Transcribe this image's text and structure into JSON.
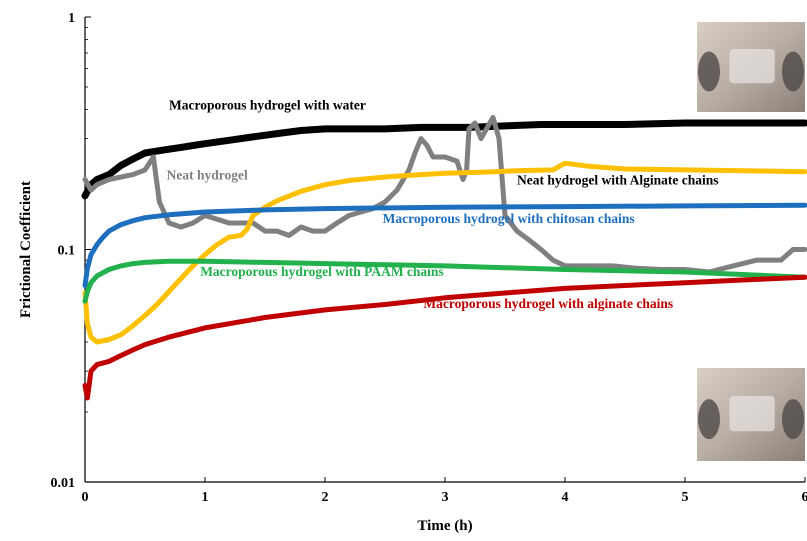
{
  "chart_data": {
    "type": "line",
    "title": "",
    "xlabel": "Time (h)",
    "ylabel": "Frictional Coefficient",
    "xlim": [
      0,
      6
    ],
    "ylim": [
      0.01,
      1
    ],
    "yscale": "log",
    "xticks": [
      "0",
      "1",
      "2",
      "3",
      "4",
      "5",
      "6"
    ],
    "yticks": [
      "0.01",
      "0.1",
      "1"
    ],
    "grid": false,
    "legend": "none (series labelled inline)",
    "series": [
      {
        "name": "Macroporous hydrogel with water",
        "color": "#000000",
        "x": [
          0,
          0.05,
          0.1,
          0.2,
          0.3,
          0.4,
          0.5,
          0.6,
          0.7,
          0.8,
          0.9,
          1.0,
          1.2,
          1.4,
          1.6,
          1.8,
          2.0,
          2.2,
          2.5,
          2.8,
          3.0,
          3.2,
          3.5,
          3.8,
          4.0,
          4.5,
          5.0,
          5.5,
          6.0
        ],
        "y": [
          0.17,
          0.19,
          0.2,
          0.21,
          0.23,
          0.245,
          0.26,
          0.265,
          0.27,
          0.275,
          0.28,
          0.285,
          0.295,
          0.305,
          0.315,
          0.325,
          0.33,
          0.33,
          0.33,
          0.335,
          0.335,
          0.335,
          0.34,
          0.345,
          0.345,
          0.345,
          0.35,
          0.35,
          0.35
        ]
      },
      {
        "name": "Neat hydrogel",
        "color": "#808080",
        "x": [
          0,
          0.05,
          0.1,
          0.2,
          0.3,
          0.4,
          0.5,
          0.57,
          0.62,
          0.7,
          0.8,
          0.9,
          1.0,
          1.1,
          1.2,
          1.3,
          1.4,
          1.5,
          1.6,
          1.7,
          1.8,
          1.9,
          2.0,
          2.1,
          2.2,
          2.3,
          2.4,
          2.5,
          2.6,
          2.7,
          2.75,
          2.8,
          2.85,
          2.9,
          3.0,
          3.1,
          3.15,
          3.18,
          3.2,
          3.25,
          3.3,
          3.4,
          3.45,
          3.5,
          3.6,
          3.7,
          3.8,
          3.9,
          4.0,
          4.2,
          4.4,
          4.6,
          4.8,
          5.0,
          5.2,
          5.4,
          5.6,
          5.8,
          5.9,
          6.0
        ],
        "y": [
          0.2,
          0.18,
          0.19,
          0.2,
          0.205,
          0.21,
          0.22,
          0.25,
          0.16,
          0.13,
          0.125,
          0.13,
          0.14,
          0.135,
          0.13,
          0.13,
          0.13,
          0.12,
          0.12,
          0.115,
          0.125,
          0.12,
          0.12,
          0.13,
          0.14,
          0.145,
          0.15,
          0.16,
          0.18,
          0.22,
          0.26,
          0.3,
          0.28,
          0.25,
          0.25,
          0.24,
          0.2,
          0.22,
          0.33,
          0.35,
          0.3,
          0.37,
          0.3,
          0.14,
          0.12,
          0.11,
          0.1,
          0.09,
          0.085,
          0.085,
          0.085,
          0.083,
          0.082,
          0.082,
          0.08,
          0.085,
          0.09,
          0.09,
          0.1,
          0.1
        ]
      },
      {
        "name": "Neat hydrogel with Alginate chains",
        "color": "#FFC000",
        "x": [
          0,
          0.02,
          0.05,
          0.1,
          0.2,
          0.3,
          0.4,
          0.5,
          0.6,
          0.7,
          0.8,
          0.9,
          1.0,
          1.1,
          1.2,
          1.3,
          1.35,
          1.4,
          1.5,
          1.6,
          1.8,
          2.0,
          2.2,
          2.5,
          2.8,
          3.0,
          3.3,
          3.6,
          3.9,
          4.0,
          4.2,
          4.5,
          5.0,
          5.5,
          6.0
        ],
        "y": [
          0.065,
          0.048,
          0.042,
          0.04,
          0.041,
          0.043,
          0.047,
          0.052,
          0.058,
          0.066,
          0.075,
          0.085,
          0.095,
          0.105,
          0.113,
          0.115,
          0.122,
          0.14,
          0.152,
          0.162,
          0.178,
          0.19,
          0.198,
          0.205,
          0.21,
          0.213,
          0.215,
          0.218,
          0.22,
          0.235,
          0.228,
          0.222,
          0.22,
          0.218,
          0.216
        ]
      },
      {
        "name": "Macroporous hydrogel with chitosan chains",
        "color": "#1F6FBF",
        "x": [
          0,
          0.02,
          0.05,
          0.1,
          0.15,
          0.2,
          0.3,
          0.4,
          0.5,
          0.7,
          1.0,
          1.5,
          2.0,
          3.0,
          4.0,
          5.0,
          6.0
        ],
        "y": [
          0.07,
          0.083,
          0.095,
          0.105,
          0.113,
          0.12,
          0.128,
          0.133,
          0.137,
          0.141,
          0.145,
          0.148,
          0.15,
          0.152,
          0.153,
          0.154,
          0.155
        ]
      },
      {
        "name": "Macroporous hydrogel with PAAM chains",
        "color": "#22B14C",
        "x": [
          0,
          0.02,
          0.05,
          0.1,
          0.2,
          0.3,
          0.4,
          0.5,
          0.7,
          1.0,
          1.5,
          2.0,
          3.0,
          4.0,
          5.0,
          5.5,
          6.0
        ],
        "y": [
          0.06,
          0.066,
          0.072,
          0.077,
          0.082,
          0.085,
          0.087,
          0.088,
          0.089,
          0.089,
          0.088,
          0.087,
          0.085,
          0.082,
          0.08,
          0.078,
          0.076
        ]
      },
      {
        "name": "Macroporous hydrogel with alginate chains",
        "color": "#C00000",
        "x": [
          0,
          0.02,
          0.05,
          0.1,
          0.2,
          0.3,
          0.4,
          0.5,
          0.7,
          1.0,
          1.5,
          2.0,
          2.5,
          3.0,
          3.5,
          4.0,
          4.5,
          5.0,
          5.5,
          6.0
        ],
        "y": [
          0.026,
          0.023,
          0.03,
          0.032,
          0.033,
          0.035,
          0.037,
          0.039,
          0.042,
          0.046,
          0.051,
          0.055,
          0.058,
          0.062,
          0.065,
          0.068,
          0.07,
          0.072,
          0.074,
          0.076
        ]
      }
    ],
    "labels": [
      {
        "text": "Macroporous hydrogel with water",
        "color": "#000000",
        "x": 0.7,
        "y": 0.4
      },
      {
        "text": "Neat hydrogel",
        "color": "#808080",
        "x": 0.68,
        "y": 0.2
      },
      {
        "text": "Neat hydrogel with Alginate chains",
        "color": "#000000",
        "x": 3.6,
        "y": 0.19
      },
      {
        "text": "Macroporous hydrogel with chitosan chains",
        "color": "#1F6FBF",
        "x": 2.48,
        "y": 0.13
      },
      {
        "text": "Macroporous hydrogel with PAAM chains",
        "color": "#22B14C",
        "x": 0.96,
        "y": 0.077
      },
      {
        "text": "Macroporous hydrogel with alginate chains",
        "color": "#C00000",
        "x": 2.82,
        "y": 0.056
      }
    ],
    "inset_images": [
      {
        "name": "top-right-hydrogel-photo",
        "description_visible": false
      },
      {
        "name": "bottom-right-hydrogel-photo",
        "description_visible": false
      }
    ]
  }
}
